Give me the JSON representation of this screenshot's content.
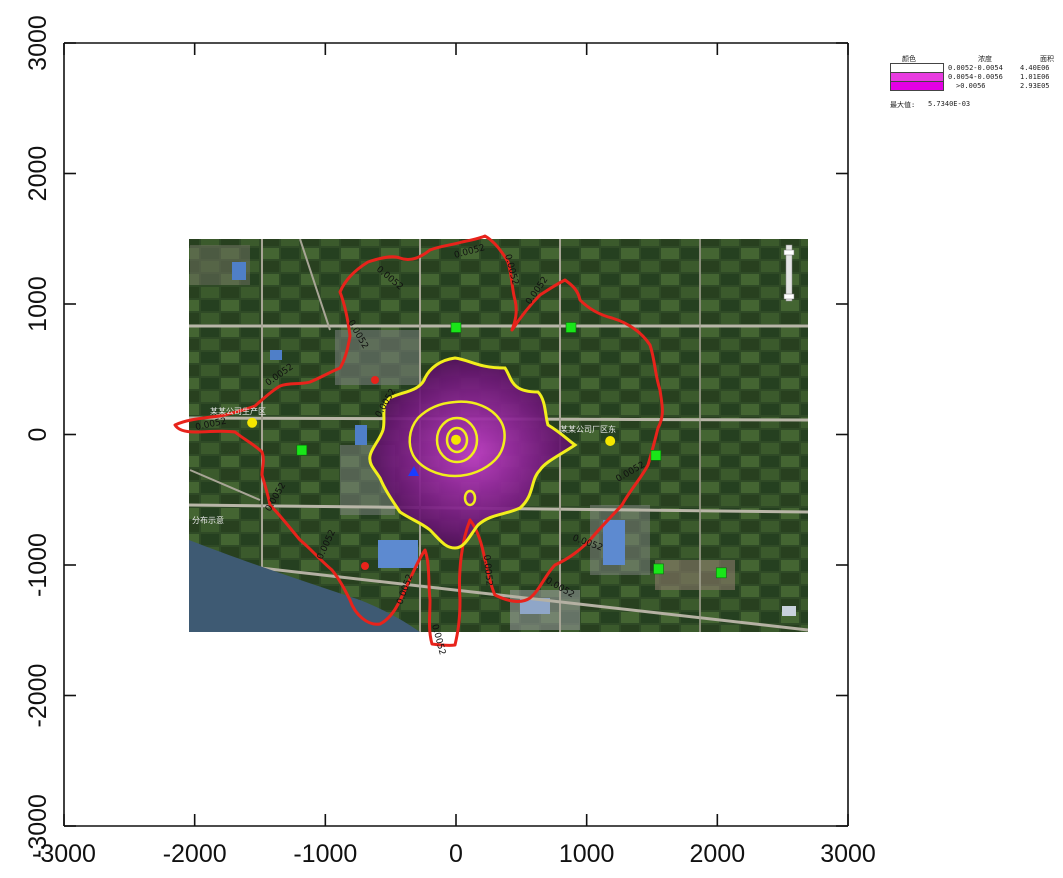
{
  "chart_data": {
    "type": "contour-map",
    "xlim": [
      -3000,
      3000
    ],
    "ylim": [
      -3000,
      3000
    ],
    "xticks": [
      "-3000",
      "-2000",
      "-1000",
      "0",
      "1000",
      "2000",
      "3000"
    ],
    "yticks": [
      "-3000",
      "-2000",
      "-1000",
      "0",
      "1000",
      "2000",
      "3000"
    ],
    "basemap_extent": {
      "x": [
        -2050,
        2700
      ],
      "y": [
        -1500,
        1500
      ]
    },
    "contours": [
      {
        "level": "0.0052",
        "color": "#e8231b"
      },
      {
        "level": "0.0054",
        "color": "#f2ee1c"
      },
      {
        "level": "0.0056",
        "color": "#f2ee1c"
      }
    ],
    "contour_labels": [
      "0.0052",
      "0.0052",
      "0.0052",
      "0.0052",
      "0.0052",
      "0.0052",
      "0.0052",
      "0.0052",
      "0.0052",
      "0.0052",
      "0.0052",
      "0.0052",
      "0.0052",
      "0.0052",
      "0.0052",
      "0.0052"
    ],
    "receptors": [
      {
        "x": 0,
        "y": 820,
        "color": "#19e619"
      },
      {
        "x": 880,
        "y": 820,
        "color": "#19e619"
      },
      {
        "x": -1180,
        "y": -120,
        "color": "#19e619"
      },
      {
        "x": 1530,
        "y": -160,
        "color": "#19e619"
      },
      {
        "x": 1550,
        "y": -1030,
        "color": "#19e619"
      },
      {
        "x": 2030,
        "y": -1060,
        "color": "#19e619"
      }
    ],
    "sources": [
      {
        "x": -1560,
        "y": 90,
        "color": "#f5e600"
      },
      {
        "x": 0,
        "y": -40,
        "color": "#f5e600"
      },
      {
        "x": 1180,
        "y": -50,
        "color": "#f5e600"
      }
    ],
    "place_labels": [
      "某某公司生产区",
      "某某公司厂区东",
      "分布示意"
    ]
  },
  "legend": {
    "header_color": "颜色",
    "header_conc": "浓度",
    "header_area": "面积",
    "rows": [
      {
        "range": "0.0052-0.0054",
        "area": "4.40E06",
        "color": "#ffffff"
      },
      {
        "range": "0.0054-0.0056",
        "area": "1.01E06",
        "color": "#e83ce0"
      },
      {
        "range": ">0.0056",
        "area": "2.93E05",
        "color": "#e400e4"
      }
    ],
    "max_label": "最大值:",
    "max_value": "5.7340E-03"
  },
  "colors": {
    "axis": "#111111",
    "red_contour": "#e8231b",
    "yellow_contour": "#f2ee1c",
    "plume_fill": "#6d1a78",
    "plume_core": "#b32cb8",
    "receptor": "#19e619",
    "source": "#f5e600"
  }
}
